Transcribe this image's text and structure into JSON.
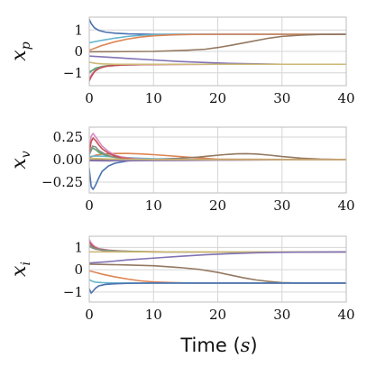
{
  "chart_data": [
    {
      "type": "line",
      "id": "xp",
      "ylabel": "x",
      "ylabel_sub": "p",
      "xlim": [
        0,
        40
      ],
      "ylim": [
        -1.6,
        1.6
      ],
      "xticks": [
        0,
        10,
        20,
        30,
        40
      ],
      "xtick_labels": [
        "0",
        "10",
        "20",
        "30",
        "40"
      ],
      "yticks": [
        1,
        0,
        -1
      ],
      "ytick_labels": [
        "1",
        "0",
        "−1"
      ],
      "grid": true,
      "series": [
        {
          "color": "#4c72b0",
          "x": [
            0,
            0.3,
            0.8,
            1.5,
            2.5,
            4,
            6,
            10,
            20,
            40
          ],
          "y": [
            1.5,
            1.3,
            1.1,
            0.98,
            0.9,
            0.85,
            0.82,
            0.8,
            0.8,
            0.8
          ]
        },
        {
          "color": "#64b5cd",
          "x": [
            0,
            2,
            4,
            6,
            8,
            10,
            14,
            20,
            40
          ],
          "y": [
            0.4,
            0.52,
            0.62,
            0.7,
            0.75,
            0.78,
            0.8,
            0.8,
            0.8
          ]
        },
        {
          "color": "#dd8452",
          "x": [
            0,
            2,
            4,
            6,
            8,
            10,
            13,
            16,
            20,
            40
          ],
          "y": [
            0.05,
            0.28,
            0.45,
            0.58,
            0.67,
            0.73,
            0.77,
            0.79,
            0.8,
            0.8
          ]
        },
        {
          "color": "#937860",
          "x": [
            0,
            5,
            10,
            15,
            18,
            20,
            22,
            25,
            28,
            30,
            33,
            36,
            40
          ],
          "y": [
            -0.02,
            -0.01,
            0.0,
            0.05,
            0.1,
            0.18,
            0.28,
            0.45,
            0.62,
            0.7,
            0.76,
            0.79,
            0.8
          ]
        },
        {
          "color": "#8172b3",
          "x": [
            0,
            3,
            6,
            10,
            14,
            18,
            22,
            26,
            30,
            34,
            40
          ],
          "y": [
            -0.22,
            -0.27,
            -0.33,
            -0.4,
            -0.47,
            -0.52,
            -0.56,
            -0.58,
            -0.6,
            -0.6,
            -0.6
          ]
        },
        {
          "color": "#8c8c8c",
          "x": [
            0,
            1,
            2,
            3,
            5,
            8,
            12,
            20,
            40
          ],
          "y": [
            -0.95,
            -0.82,
            -0.73,
            -0.68,
            -0.64,
            -0.62,
            -0.6,
            -0.6,
            -0.6
          ]
        },
        {
          "color": "#55a868",
          "x": [
            0,
            0.5,
            1,
            2,
            3,
            5,
            8,
            12,
            20,
            40
          ],
          "y": [
            -1.0,
            -0.88,
            -0.78,
            -0.7,
            -0.66,
            -0.63,
            -0.61,
            -0.6,
            -0.6,
            -0.6
          ]
        },
        {
          "color": "#da8bc3",
          "x": [
            0,
            0.4,
            1,
            1.8,
            3,
            5,
            8,
            12,
            20,
            40
          ],
          "y": [
            -1.3,
            -1.05,
            -0.88,
            -0.75,
            -0.68,
            -0.64,
            -0.62,
            -0.61,
            -0.6,
            -0.6
          ]
        },
        {
          "color": "#c44e52",
          "x": [
            0,
            0.3,
            0.8,
            1.5,
            2.5,
            4,
            6,
            10,
            20,
            40
          ],
          "y": [
            -1.38,
            -1.18,
            -0.95,
            -0.8,
            -0.7,
            -0.65,
            -0.62,
            -0.61,
            -0.6,
            -0.6
          ]
        },
        {
          "color": "#ccb974",
          "x": [
            0,
            1,
            2,
            4,
            8,
            12,
            20,
            40
          ],
          "y": [
            -0.5,
            -0.56,
            -0.58,
            -0.6,
            -0.6,
            -0.6,
            -0.6,
            -0.6
          ]
        }
      ]
    },
    {
      "type": "line",
      "id": "xv",
      "ylabel": "x",
      "ylabel_sub": "v",
      "xlim": [
        0,
        40
      ],
      "ylim": [
        -0.37,
        0.36
      ],
      "xticks": [
        0,
        10,
        20,
        30,
        40
      ],
      "xtick_labels": [
        "0",
        "10",
        "20",
        "30",
        "40"
      ],
      "yticks": [
        0.25,
        0.0,
        -0.25
      ],
      "ytick_labels": [
        "0.25",
        "0.00",
        "−0.25"
      ],
      "grid": true,
      "series": [
        {
          "color": "#4c72b0",
          "x": [
            0,
            0.3,
            0.6,
            1,
            1.5,
            2,
            3,
            4,
            6,
            8,
            12,
            20,
            40
          ],
          "y": [
            -0.1,
            -0.3,
            -0.33,
            -0.28,
            -0.2,
            -0.13,
            -0.07,
            -0.04,
            -0.015,
            -0.005,
            0.0,
            0.0,
            0.0
          ]
        },
        {
          "color": "#dd8452",
          "x": [
            0,
            1,
            2,
            3,
            4,
            6,
            8,
            10,
            12,
            14,
            16,
            18,
            20,
            40
          ],
          "y": [
            0.02,
            0.05,
            0.06,
            0.065,
            0.068,
            0.068,
            0.063,
            0.055,
            0.045,
            0.034,
            0.023,
            0.014,
            0.005,
            0.0
          ]
        },
        {
          "color": "#937860",
          "x": [
            0,
            5,
            10,
            14,
            17,
            19,
            21,
            23,
            24.5,
            26,
            28,
            30,
            33,
            36,
            40
          ],
          "y": [
            0.0,
            0.002,
            0.006,
            0.015,
            0.028,
            0.042,
            0.055,
            0.064,
            0.066,
            0.062,
            0.05,
            0.034,
            0.016,
            0.006,
            0.0
          ]
        },
        {
          "color": "#8172b3",
          "x": [
            0,
            3,
            6,
            10,
            15,
            20,
            25,
            30,
            35,
            40
          ],
          "y": [
            -0.012,
            -0.014,
            -0.013,
            -0.011,
            -0.009,
            -0.006,
            -0.004,
            -0.002,
            -0.001,
            0.0
          ]
        },
        {
          "color": "#64b5cd",
          "x": [
            0,
            1,
            2,
            4,
            6,
            8,
            10,
            14,
            20,
            40
          ],
          "y": [
            0.035,
            0.04,
            0.038,
            0.03,
            0.022,
            0.015,
            0.01,
            0.004,
            0.0,
            0.0
          ]
        },
        {
          "color": "#55a868",
          "x": [
            0,
            0.5,
            1,
            1.5,
            2.5,
            3.5,
            5,
            7,
            10,
            20,
            40
          ],
          "y": [
            0.06,
            0.13,
            0.11,
            0.08,
            0.05,
            0.03,
            0.015,
            0.005,
            0.0,
            0.0,
            0.0
          ]
        },
        {
          "color": "#8c8c8c",
          "x": [
            0,
            0.5,
            1,
            1.5,
            2.5,
            3.5,
            5,
            7,
            10,
            20,
            40
          ],
          "y": [
            0.05,
            0.15,
            0.14,
            0.1,
            0.06,
            0.035,
            0.015,
            0.005,
            0.0,
            0.0,
            0.0
          ]
        },
        {
          "color": "#da8bc3",
          "x": [
            0,
            0.3,
            0.6,
            1,
            1.5,
            2,
            3,
            4,
            5,
            7,
            10,
            20,
            40
          ],
          "y": [
            0.1,
            0.26,
            0.29,
            0.25,
            0.2,
            0.15,
            0.09,
            0.05,
            0.03,
            0.01,
            0.0,
            0.0,
            0.0
          ]
        },
        {
          "color": "#c44e52",
          "x": [
            0,
            0.3,
            0.6,
            1,
            1.5,
            2,
            3,
            4,
            5,
            7,
            10,
            20,
            40
          ],
          "y": [
            0.08,
            0.2,
            0.24,
            0.21,
            0.16,
            0.12,
            0.07,
            0.04,
            0.02,
            0.005,
            0.0,
            0.0,
            0.0
          ]
        },
        {
          "color": "#ccb974",
          "x": [
            0,
            1,
            2,
            4,
            8,
            12,
            20,
            40
          ],
          "y": [
            0.01,
            0.012,
            0.01,
            0.006,
            0.002,
            0.0,
            0.0,
            0.0
          ]
        }
      ]
    },
    {
      "type": "line",
      "id": "xi",
      "ylabel": "x",
      "ylabel_sub": "i",
      "xlim": [
        0,
        40
      ],
      "ylim": [
        -1.45,
        1.5
      ],
      "xticks": [
        0,
        10,
        20,
        30,
        40
      ],
      "xtick_labels": [
        "0",
        "10",
        "20",
        "30",
        "40"
      ],
      "yticks": [
        1,
        0,
        -1
      ],
      "ytick_labels": [
        "1",
        "0",
        "−1"
      ],
      "grid": true,
      "series": [
        {
          "color": "#da8bc3",
          "x": [
            0,
            0.3,
            0.8,
            1.5,
            3,
            5,
            8,
            12,
            20,
            40
          ],
          "y": [
            1.35,
            1.2,
            1.05,
            0.95,
            0.88,
            0.84,
            0.81,
            0.8,
            0.8,
            0.8
          ]
        },
        {
          "color": "#c44e52",
          "x": [
            0,
            0.3,
            0.8,
            1.5,
            3,
            5,
            8,
            12,
            20,
            40
          ],
          "y": [
            1.25,
            1.12,
            1.0,
            0.92,
            0.86,
            0.83,
            0.81,
            0.8,
            0.8,
            0.8
          ]
        },
        {
          "color": "#55a868",
          "x": [
            0,
            0.5,
            1,
            2,
            4,
            6,
            10,
            20,
            40
          ],
          "y": [
            1.1,
            1.0,
            0.94,
            0.88,
            0.84,
            0.82,
            0.8,
            0.8,
            0.8
          ]
        },
        {
          "color": "#8c8c8c",
          "x": [
            0,
            0.5,
            1,
            2,
            4,
            6,
            10,
            20,
            40
          ],
          "y": [
            1.05,
            0.97,
            0.92,
            0.87,
            0.83,
            0.81,
            0.8,
            0.8,
            0.8
          ]
        },
        {
          "color": "#ccb974",
          "x": [
            0,
            1,
            2,
            4,
            8,
            20,
            40
          ],
          "y": [
            0.8,
            0.8,
            0.8,
            0.8,
            0.8,
            0.8,
            0.8
          ]
        },
        {
          "color": "#8172b3",
          "x": [
            0,
            3,
            6,
            10,
            14,
            18,
            22,
            26,
            30,
            34,
            40
          ],
          "y": [
            0.3,
            0.36,
            0.44,
            0.52,
            0.6,
            0.67,
            0.72,
            0.76,
            0.78,
            0.79,
            0.8
          ]
        },
        {
          "color": "#937860",
          "x": [
            0,
            5,
            10,
            14,
            17,
            20,
            22,
            24,
            26,
            28,
            30,
            33,
            36,
            40
          ],
          "y": [
            0.25,
            0.22,
            0.18,
            0.1,
            0.02,
            -0.12,
            -0.24,
            -0.36,
            -0.46,
            -0.53,
            -0.58,
            -0.6,
            -0.6,
            -0.6
          ]
        },
        {
          "color": "#dd8452",
          "x": [
            0,
            1,
            2,
            4,
            6,
            8,
            10,
            13,
            16,
            20,
            40
          ],
          "y": [
            -0.05,
            -0.12,
            -0.2,
            -0.32,
            -0.42,
            -0.5,
            -0.55,
            -0.58,
            -0.6,
            -0.6,
            -0.6
          ]
        },
        {
          "color": "#64b5cd",
          "x": [
            0,
            0.5,
            1,
            2,
            3,
            5,
            8,
            12,
            20,
            40
          ],
          "y": [
            -0.45,
            -0.52,
            -0.56,
            -0.58,
            -0.59,
            -0.6,
            -0.6,
            -0.6,
            -0.6,
            -0.6
          ]
        },
        {
          "color": "#4c72b0",
          "x": [
            0,
            0.3,
            0.6,
            1,
            1.5,
            2.5,
            4,
            6,
            10,
            20,
            40
          ],
          "y": [
            -0.85,
            -1.05,
            -0.95,
            -0.82,
            -0.72,
            -0.66,
            -0.63,
            -0.61,
            -0.6,
            -0.6,
            -0.6
          ]
        }
      ]
    }
  ],
  "xaxis_title": {
    "text": "Time",
    "unit_open": " (",
    "unit_symbol": "s",
    "unit_close": ")"
  }
}
